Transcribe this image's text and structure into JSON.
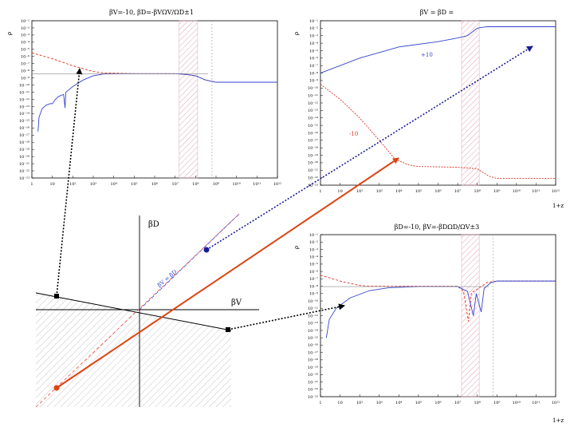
{
  "colors": {
    "blue": "#3344cc",
    "red": "#dd3322",
    "navy": "#1a1a99",
    "orange": "#dd4411",
    "hatch": "#e8aac0",
    "black": "#000000"
  },
  "chart_data": [
    {
      "type": "line",
      "title": "βV=-10, βD=-βVΩV/ΩD±1",
      "ylabel": "ρ",
      "xlabel": "",
      "x_ticks": [
        "1",
        "10",
        "10²",
        "10³",
        "10⁴",
        "10⁵",
        "10⁶",
        "10⁷",
        "10⁸",
        "10⁹",
        "10¹⁰",
        "10¹¹",
        "10¹²"
      ],
      "y_ticks": [
        "10⁻¹",
        "10⁻²",
        "10⁻³",
        "10⁻⁴",
        "10⁻⁵",
        "10⁻⁶",
        "10⁻⁷",
        "10⁻⁸",
        "10⁻⁹",
        "10⁻¹⁰",
        "10⁻¹¹",
        "10⁻¹²",
        "10⁻¹³",
        "10⁻¹⁴",
        "10⁻¹⁵",
        "10⁻¹⁶",
        "10⁻¹⁷",
        "10⁻¹⁸",
        "10⁻¹⁹",
        "10⁻²⁰",
        "10⁻²¹",
        "10⁻²²",
        "10⁻²³"
      ],
      "series": [
        {
          "name": "red",
          "color": "red",
          "points": [
            [
              0,
              -5.5
            ],
            [
              1,
              -6.3
            ],
            [
              2,
              -7.3
            ],
            [
              3,
              -8.1
            ],
            [
              3.5,
              -8.3
            ],
            [
              5,
              -8.4
            ],
            [
              7,
              -8.4
            ],
            [
              7.5,
              -8.5
            ],
            [
              8,
              -8.7
            ],
            [
              8.5,
              -9.3
            ],
            [
              9,
              -9.6
            ],
            [
              12,
              -9.6
            ]
          ]
        },
        {
          "name": "blue",
          "color": "blue",
          "points": [
            [
              0.3,
              -16.5
            ],
            [
              0.35,
              -14.5
            ],
            [
              0.5,
              -13.3
            ],
            [
              0.7,
              -12.8
            ],
            [
              0.9,
              -12.6
            ],
            [
              1.0,
              -12.6
            ],
            [
              1.15,
              -12.0
            ],
            [
              1.3,
              -11.6
            ],
            [
              1.55,
              -11.3
            ],
            [
              1.62,
              -13.2
            ],
            [
              1.66,
              -11.0
            ],
            [
              2,
              -10.2
            ],
            [
              2.5,
              -9.3
            ],
            [
              3,
              -8.7
            ],
            [
              3.5,
              -8.45
            ],
            [
              5,
              -8.4
            ],
            [
              7,
              -8.4
            ],
            [
              7.5,
              -8.5
            ],
            [
              8,
              -8.7
            ],
            [
              8.5,
              -9.3
            ],
            [
              9,
              -9.6
            ],
            [
              12,
              -9.6
            ]
          ]
        },
        {
          "name": "reference",
          "color": "gray",
          "points": [
            [
              0,
              -8.4
            ],
            [
              8.6,
              -8.4
            ]
          ]
        }
      ],
      "highlight_band_x": [
        7.2,
        8.1
      ],
      "dashed_x": 8.8
    },
    {
      "type": "line",
      "title": "βV = βD =",
      "ylabel": "ρ",
      "xlabel": "1+z",
      "x_ticks": [
        "1",
        "10",
        "10²",
        "10³",
        "10⁴",
        "10⁵",
        "10⁶",
        "10⁷",
        "10⁸",
        "10⁹",
        "10¹⁰",
        "10¹¹",
        "10¹²"
      ],
      "y_ticks": [
        "10⁻¹",
        "10⁻²",
        "10⁻³",
        "10⁻⁴",
        "10⁻⁵",
        "10⁻⁶",
        "10⁻⁷",
        "10⁻⁸",
        "10⁻⁹",
        "10⁻¹⁰",
        "10⁻¹¹",
        "10⁻¹²",
        "10⁻¹³",
        "10⁻¹⁴",
        "10⁻¹⁵",
        "10⁻¹⁶",
        "10⁻¹⁷",
        "10⁻¹⁸",
        "10⁻¹⁹",
        "10⁻²⁰",
        "10⁻²¹",
        "10⁻²²",
        "10⁻²³"
      ],
      "annotations": [
        "+10",
        "-10"
      ],
      "series": [
        {
          "name": "+10",
          "color": "blue",
          "points": [
            [
              0,
              -8
            ],
            [
              2,
              -6
            ],
            [
              4,
              -4.5
            ],
            [
              6,
              -3.8
            ],
            [
              7,
              -3.3
            ],
            [
              7.5,
              -3.0
            ],
            [
              8,
              -2.0
            ],
            [
              8.5,
              -1.8
            ],
            [
              10,
              -1.8
            ],
            [
              12,
              -1.8
            ]
          ]
        },
        {
          "name": "-10",
          "color": "red",
          "points": [
            [
              0,
              -9.5
            ],
            [
              1,
              -11.5
            ],
            [
              2,
              -14
            ],
            [
              3,
              -17
            ],
            [
              3.8,
              -19.5
            ],
            [
              4.5,
              -20.3
            ],
            [
              5,
              -20.5
            ],
            [
              7,
              -20.6
            ],
            [
              8,
              -20.8
            ],
            [
              8.6,
              -21.8
            ],
            [
              9,
              -22.1
            ],
            [
              12,
              -22.1
            ]
          ]
        }
      ],
      "highlight_band_x": [
        7.2,
        8.1
      ]
    },
    {
      "type": "line",
      "title": "βD=-10, βV=-βDΩD/ΩV±3",
      "ylabel": "ρ",
      "xlabel": "1+z",
      "x_ticks": [
        "1",
        "10",
        "10²",
        "10³",
        "10⁴",
        "10⁵",
        "10⁶",
        "10⁷",
        "10⁸",
        "10⁹",
        "10¹⁰",
        "10¹¹",
        "10¹²"
      ],
      "y_ticks": [
        "10⁻¹",
        "10⁻²",
        "10⁻³",
        "10⁻⁴",
        "10⁻⁵",
        "10⁻⁶",
        "10⁻⁷",
        "10⁻⁸",
        "10⁻⁹",
        "10⁻¹⁰",
        "10⁻¹¹",
        "10⁻¹²",
        "10⁻¹³",
        "10⁻¹⁴",
        "10⁻¹⁵",
        "10⁻¹⁶",
        "10⁻¹⁷",
        "10⁻¹⁸",
        "10⁻¹⁹",
        "10⁻²⁰",
        "10⁻²¹",
        "10⁻²²",
        "10⁻²³"
      ],
      "series": [
        {
          "name": "red",
          "color": "red",
          "points": [
            [
              0,
              -6.5
            ],
            [
              1,
              -7.3
            ],
            [
              2,
              -7.9
            ],
            [
              2.5,
              -8.0
            ],
            [
              7,
              -8.0
            ],
            [
              7.3,
              -8.7
            ],
            [
              7.55,
              -12.8
            ],
            [
              7.7,
              -8.9
            ],
            [
              8,
              -8.4
            ],
            [
              8.5,
              -7.5
            ],
            [
              9,
              -7.3
            ],
            [
              12,
              -7.3
            ]
          ]
        },
        {
          "name": "blue",
          "color": "blue",
          "points": [
            [
              0.3,
              -15
            ],
            [
              0.45,
              -12.5
            ],
            [
              0.8,
              -11.0
            ],
            [
              1.5,
              -9.6
            ],
            [
              2.5,
              -8.6
            ],
            [
              3.5,
              -8.2
            ],
            [
              5,
              -8.05
            ],
            [
              7,
              -8.05
            ],
            [
              7.5,
              -8.7
            ],
            [
              7.8,
              -12.0
            ],
            [
              7.95,
              -9.0
            ],
            [
              8.2,
              -11.5
            ],
            [
              8.35,
              -8.3
            ],
            [
              8.7,
              -7.5
            ],
            [
              9,
              -7.3
            ],
            [
              12,
              -7.3
            ]
          ]
        },
        {
          "name": "reference",
          "color": "gray",
          "points": [
            [
              0,
              -8.05
            ],
            [
              8.6,
              -8.05
            ]
          ]
        }
      ],
      "highlight_band_x": [
        7.2,
        8.1
      ],
      "dashed_x": 8.8
    }
  ],
  "phase_diagram": {
    "x_axis_label": "βV",
    "y_axis_label": "βD",
    "diagonal_label": "βV = βD"
  }
}
